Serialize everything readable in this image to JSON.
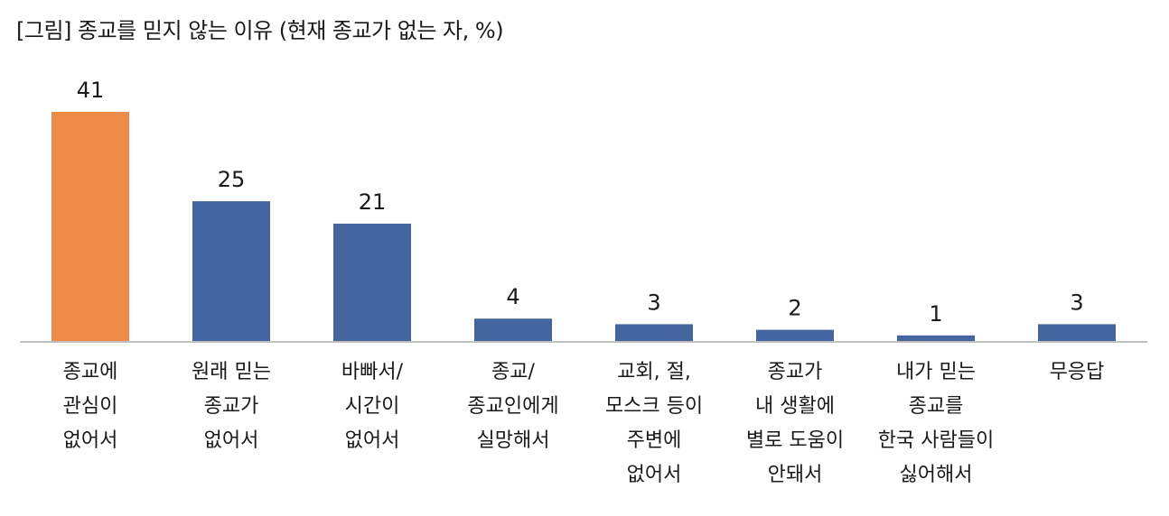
{
  "title": "[그림] 종교를 믿지 않는 이유 (현재 종교가 없는 자, %)",
  "chart_data": {
    "type": "bar",
    "title": "[그림] 종교를 믿지 않는 이유 (현재 종교가 없는 자, %)",
    "xlabel": "",
    "ylabel": "",
    "ylim": [
      0,
      41
    ],
    "grid": false,
    "legend": "none",
    "categories": [
      [
        "종교에",
        "관심이",
        "없어서"
      ],
      [
        "원래 믿는",
        "종교가",
        "없어서"
      ],
      [
        "바빠서/",
        "시간이",
        "없어서"
      ],
      [
        "종교/",
        "종교인에게",
        "실망해서"
      ],
      [
        "교회, 절,",
        "모스크 등이",
        "주변에",
        "없어서"
      ],
      [
        "종교가",
        "내 생활에",
        "별로 도움이",
        "안돼서"
      ],
      [
        "내가 믿는",
        "종교를",
        "한국 사람들이",
        "싫어해서"
      ],
      [
        "무응답"
      ]
    ],
    "values": [
      41,
      25,
      21,
      4,
      3,
      2,
      1,
      3
    ],
    "highlight_index": 0,
    "colors": {
      "highlight": "#EE8A4A",
      "default": "#44659E",
      "axis": "#BFBFBF"
    }
  }
}
